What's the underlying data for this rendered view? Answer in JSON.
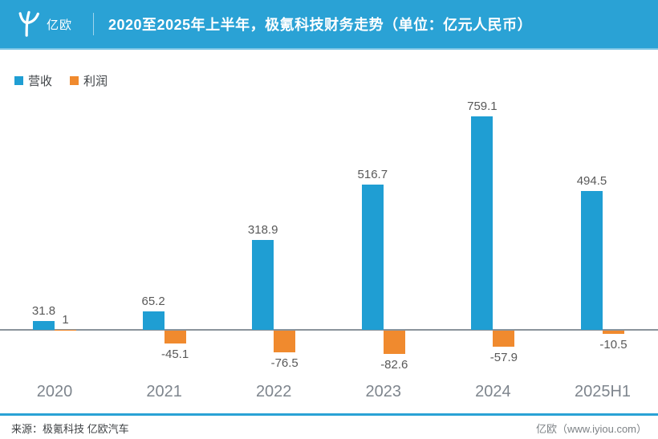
{
  "header": {
    "logo_text": "亿欧",
    "title": "2020至2025年上半年，极氪科技财务走势（单位：亿元人民币）"
  },
  "legend": {
    "items": [
      {
        "label": "营收",
        "color": "#1f9ed3"
      },
      {
        "label": "利润",
        "color": "#f08a2e"
      }
    ]
  },
  "chart_data": {
    "type": "bar",
    "title": "2020至2025年上半年，极氪科技财务走势（单位：亿元人民币）",
    "unit": "亿元人民币",
    "categories": [
      "2020",
      "2021",
      "2022",
      "2023",
      "2024",
      "2025H1"
    ],
    "series": [
      {
        "name": "营收",
        "color": "#1f9ed3",
        "values": [
          31.8,
          65.2,
          318.9,
          516.7,
          759.1,
          494.5
        ]
      },
      {
        "name": "利润",
        "color": "#f08a2e",
        "values": [
          1,
          -45.1,
          -76.5,
          -82.6,
          -57.9,
          -10.5
        ]
      }
    ],
    "xlabel": "",
    "ylabel": "",
    "ylim": [
      -120,
      800
    ],
    "grid": false,
    "legend_position": "top-left",
    "value_labels_shown": true
  },
  "footer": {
    "source": "来源：极氪科技 亿欧汽车",
    "site": "亿欧（www.iyiou.com）"
  },
  "colors": {
    "header_bg": "#2aa2d5",
    "revenue_bar": "#1f9ed3",
    "profit_bar": "#f08a2e",
    "axis_line": "#8a939b",
    "value_label": "#595959",
    "category_label": "#7e858d",
    "separator_line": "#2aa2d5"
  }
}
